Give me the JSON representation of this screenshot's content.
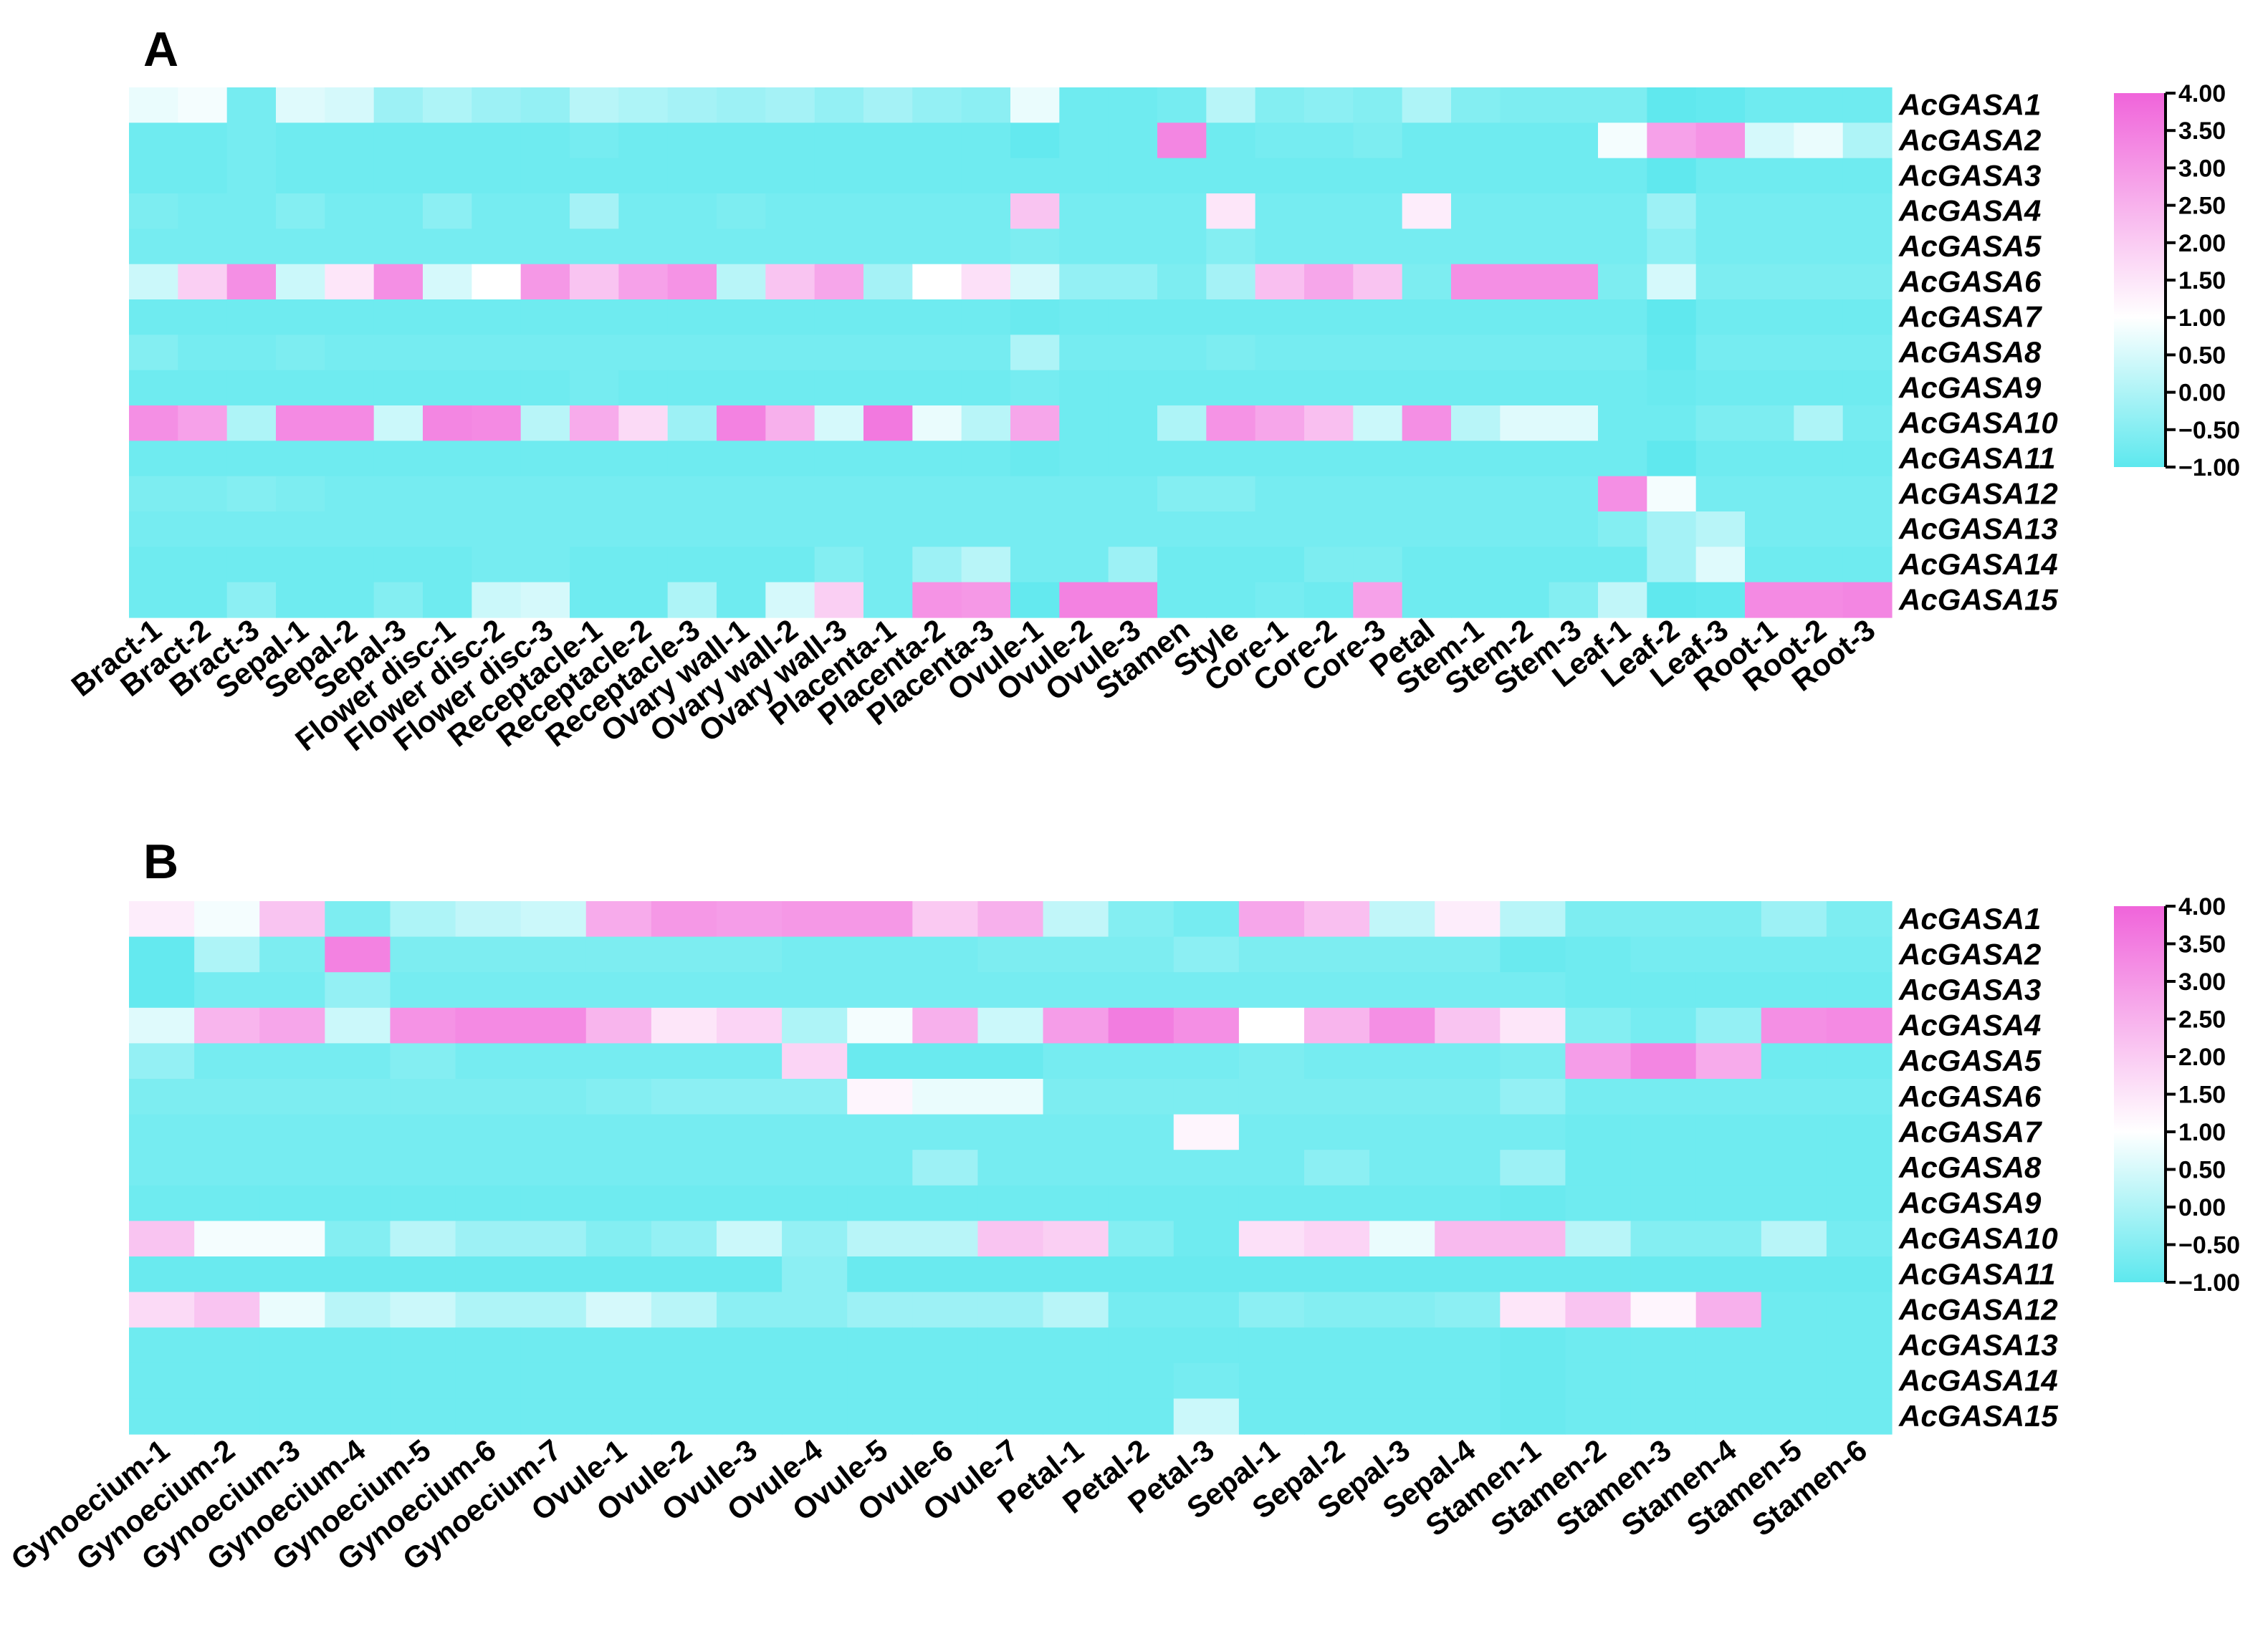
{
  "chart_data": [
    {
      "type": "heatmap",
      "panel": "A",
      "rows": [
        "AcGASA1",
        "AcGASA2",
        "AcGASA3",
        "AcGASA4",
        "AcGASA5",
        "AcGASA6",
        "AcGASA7",
        "AcGASA8",
        "AcGASA9",
        "AcGASA10",
        "AcGASA11",
        "AcGASA12",
        "AcGASA13",
        "AcGASA14",
        "AcGASA15"
      ],
      "columns": [
        "Bract-1",
        "Bract-2",
        "Bract-3",
        "Sepal-1",
        "Sepal-2",
        "Sepal-3",
        "Flower disc-1",
        "Flower disc-2",
        "Flower disc-3",
        "Receptacle-1",
        "Receptacle-2",
        "Receptacle-3",
        "Ovary wall-1",
        "Ovary wall-2",
        "Ovary wall-3",
        "Placenta-1",
        "Placenta-2",
        "Placenta-3",
        "Ovule-1",
        "Ovule-2",
        "Ovule-3",
        "Stamen",
        "Style",
        "Core-1",
        "Core-2",
        "Core-3",
        "Petal",
        "Stem-1",
        "Stem-2",
        "Stem-3",
        "Leaf-1",
        "Leaf-2",
        "Leaf-3",
        "Root-1",
        "Root-2",
        "Root-3"
      ],
      "values": [
        [
          0.8,
          0.9,
          -0.5,
          0.7,
          0.6,
          0.0,
          0.2,
          0.0,
          -0.1,
          0.3,
          0.2,
          0.1,
          0.0,
          0.1,
          -0.1,
          0.1,
          -0.1,
          -0.2,
          0.8,
          -0.6,
          -0.6,
          -0.5,
          0.3,
          -0.3,
          -0.2,
          -0.3,
          0.2,
          -0.3,
          -0.4,
          -0.4,
          -0.4,
          -0.9,
          -0.8,
          -0.6,
          -0.6,
          -0.6
        ],
        [
          -0.6,
          -0.6,
          -0.5,
          -0.6,
          -0.6,
          -0.6,
          -0.6,
          -0.6,
          -0.6,
          -0.5,
          -0.6,
          -0.6,
          -0.6,
          -0.6,
          -0.6,
          -0.6,
          -0.6,
          -0.6,
          -0.8,
          -0.6,
          -0.6,
          3.2,
          -0.6,
          -0.5,
          -0.5,
          -0.4,
          -0.6,
          -0.6,
          -0.6,
          -0.6,
          0.9,
          2.6,
          2.9,
          0.6,
          0.8,
          0.2
        ],
        [
          -0.6,
          -0.6,
          -0.5,
          -0.6,
          -0.6,
          -0.6,
          -0.6,
          -0.6,
          -0.6,
          -0.6,
          -0.6,
          -0.6,
          -0.6,
          -0.6,
          -0.6,
          -0.6,
          -0.6,
          -0.6,
          -0.6,
          -0.6,
          -0.6,
          -0.6,
          -0.6,
          -0.6,
          -0.6,
          -0.6,
          -0.6,
          -0.6,
          -0.6,
          -0.6,
          -0.6,
          -0.9,
          -0.6,
          -0.6,
          -0.6,
          -0.6
        ],
        [
          -0.4,
          -0.5,
          -0.5,
          -0.3,
          -0.5,
          -0.5,
          -0.2,
          -0.5,
          -0.5,
          0.1,
          -0.5,
          -0.5,
          -0.4,
          -0.5,
          -0.5,
          -0.5,
          -0.5,
          -0.5,
          1.9,
          -0.5,
          -0.5,
          -0.5,
          1.3,
          -0.5,
          -0.5,
          -0.5,
          1.2,
          -0.5,
          -0.5,
          -0.5,
          -0.5,
          0.0,
          -0.5,
          -0.5,
          -0.5,
          -0.5
        ],
        [
          -0.5,
          -0.5,
          -0.5,
          -0.5,
          -0.5,
          -0.5,
          -0.5,
          -0.5,
          -0.5,
          -0.5,
          -0.5,
          -0.5,
          -0.5,
          -0.5,
          -0.5,
          -0.5,
          -0.5,
          -0.5,
          -0.4,
          -0.5,
          -0.5,
          -0.5,
          -0.3,
          -0.5,
          -0.5,
          -0.5,
          -0.5,
          -0.5,
          -0.5,
          -0.5,
          -0.5,
          -0.2,
          -0.5,
          -0.5,
          -0.5,
          -0.5
        ],
        [
          0.5,
          1.7,
          3.0,
          0.5,
          1.3,
          3.0,
          0.6,
          1.0,
          2.8,
          1.9,
          2.6,
          2.9,
          0.3,
          1.9,
          2.5,
          0.1,
          1.0,
          1.4,
          0.6,
          -0.1,
          -0.1,
          -0.4,
          0.1,
          2.0,
          2.5,
          1.9,
          -0.4,
          3.0,
          3.0,
          3.0,
          -0.4,
          0.6,
          -0.4,
          -0.4,
          -0.4,
          -0.4
        ],
        [
          -0.6,
          -0.6,
          -0.6,
          -0.6,
          -0.6,
          -0.6,
          -0.6,
          -0.6,
          -0.6,
          -0.6,
          -0.6,
          -0.6,
          -0.6,
          -0.6,
          -0.6,
          -0.6,
          -0.6,
          -0.6,
          -0.7,
          -0.6,
          -0.6,
          -0.6,
          -0.6,
          -0.6,
          -0.6,
          -0.6,
          -0.6,
          -0.6,
          -0.6,
          -0.6,
          -0.6,
          -0.9,
          -0.6,
          -0.6,
          -0.6,
          -0.6
        ],
        [
          -0.3,
          -0.5,
          -0.5,
          -0.4,
          -0.5,
          -0.5,
          -0.5,
          -0.5,
          -0.5,
          -0.5,
          -0.5,
          -0.5,
          -0.5,
          -0.5,
          -0.5,
          -0.5,
          -0.5,
          -0.5,
          0.2,
          -0.5,
          -0.5,
          -0.5,
          -0.4,
          -0.5,
          -0.5,
          -0.5,
          -0.5,
          -0.5,
          -0.5,
          -0.5,
          -0.5,
          -0.8,
          -0.5,
          -0.5,
          -0.5,
          -0.5
        ],
        [
          -0.6,
          -0.6,
          -0.6,
          -0.6,
          -0.6,
          -0.6,
          -0.6,
          -0.6,
          -0.6,
          -0.5,
          -0.6,
          -0.6,
          -0.6,
          -0.6,
          -0.6,
          -0.6,
          -0.6,
          -0.6,
          -0.5,
          -0.6,
          -0.6,
          -0.6,
          -0.6,
          -0.6,
          -0.6,
          -0.6,
          -0.6,
          -0.6,
          -0.6,
          -0.6,
          -0.6,
          -0.7,
          -0.6,
          -0.6,
          -0.6,
          -0.6
        ],
        [
          3.0,
          2.6,
          0.2,
          3.1,
          3.1,
          0.5,
          3.2,
          3.1,
          0.3,
          2.4,
          1.5,
          0.0,
          3.3,
          2.3,
          0.6,
          3.5,
          0.8,
          0.3,
          2.5,
          -0.6,
          -0.6,
          0.2,
          2.9,
          2.5,
          2.0,
          0.5,
          3.0,
          0.3,
          0.7,
          0.7,
          -0.6,
          -0.6,
          -0.4,
          -0.4,
          0.2,
          -0.5
        ],
        [
          -0.6,
          -0.6,
          -0.6,
          -0.6,
          -0.6,
          -0.6,
          -0.6,
          -0.6,
          -0.6,
          -0.6,
          -0.6,
          -0.6,
          -0.6,
          -0.6,
          -0.6,
          -0.6,
          -0.6,
          -0.6,
          -0.7,
          -0.6,
          -0.6,
          -0.6,
          -0.6,
          -0.6,
          -0.6,
          -0.6,
          -0.6,
          -0.6,
          -0.6,
          -0.6,
          -0.6,
          -0.9,
          -0.6,
          -0.6,
          -0.6,
          -0.6
        ],
        [
          -0.4,
          -0.4,
          -0.3,
          -0.4,
          -0.5,
          -0.5,
          -0.5,
          -0.5,
          -0.5,
          -0.5,
          -0.5,
          -0.5,
          -0.5,
          -0.5,
          -0.5,
          -0.5,
          -0.5,
          -0.5,
          -0.5,
          -0.5,
          -0.5,
          -0.3,
          -0.3,
          -0.5,
          -0.5,
          -0.5,
          -0.5,
          -0.5,
          -0.5,
          -0.5,
          3.0,
          0.9,
          -0.5,
          -0.5,
          -0.5,
          -0.5
        ],
        [
          -0.5,
          -0.5,
          -0.5,
          -0.5,
          -0.5,
          -0.5,
          -0.5,
          -0.5,
          -0.5,
          -0.5,
          -0.5,
          -0.5,
          -0.5,
          -0.5,
          -0.5,
          -0.5,
          -0.5,
          -0.5,
          -0.5,
          -0.5,
          -0.5,
          -0.5,
          -0.5,
          -0.5,
          -0.5,
          -0.5,
          -0.5,
          -0.5,
          -0.5,
          -0.5,
          -0.3,
          0.1,
          0.3,
          -0.5,
          -0.5,
          -0.5
        ],
        [
          -0.6,
          -0.6,
          -0.6,
          -0.6,
          -0.6,
          -0.6,
          -0.6,
          -0.5,
          -0.5,
          -0.6,
          -0.6,
          -0.6,
          -0.6,
          -0.6,
          -0.3,
          -0.5,
          0.0,
          0.3,
          -0.5,
          -0.5,
          0.0,
          -0.6,
          -0.6,
          -0.6,
          -0.4,
          -0.4,
          -0.6,
          -0.6,
          -0.6,
          -0.6,
          -0.6,
          0.1,
          0.7,
          -0.6,
          -0.6,
          -0.6
        ],
        [
          -0.6,
          -0.6,
          -0.2,
          -0.6,
          -0.6,
          -0.3,
          -0.6,
          0.5,
          0.6,
          -0.6,
          -0.6,
          0.2,
          -0.6,
          0.6,
          1.7,
          -0.5,
          2.9,
          2.8,
          -0.8,
          3.3,
          3.3,
          -0.6,
          -0.6,
          -0.5,
          -0.6,
          2.6,
          -0.6,
          -0.6,
          -0.6,
          -0.3,
          0.4,
          -0.9,
          -0.8,
          3.1,
          3.1,
          3.2
        ]
      ],
      "colorbar": {
        "min": -1.0,
        "max": 4.0,
        "ticks": [
          "4.00",
          "3.50",
          "3.00",
          "2.50",
          "2.00",
          "1.50",
          "1.00",
          "0.50",
          "0.00",
          "−0.50",
          "−1.00"
        ]
      },
      "colors": {
        "low": "#5de8ee",
        "mid": "#ffffff",
        "high": "#f064da"
      }
    },
    {
      "type": "heatmap",
      "panel": "B",
      "rows": [
        "AcGASA1",
        "AcGASA2",
        "AcGASA3",
        "AcGASA4",
        "AcGASA5",
        "AcGASA6",
        "AcGASA7",
        "AcGASA8",
        "AcGASA9",
        "AcGASA10",
        "AcGASA11",
        "AcGASA12",
        "AcGASA13",
        "AcGASA14",
        "AcGASA15"
      ],
      "columns": [
        "Gynoecium-1",
        "Gynoecium-2",
        "Gynoecium-3",
        "Gynoecium-4",
        "Gynoecium-5",
        "Gynoecium-6",
        "Gynoecium-7",
        "Ovule-1",
        "Ovule-2",
        "Ovule-3",
        "Ovule-4",
        "Ovule-5",
        "Ovule-6",
        "Ovule-7",
        "Petal-1",
        "Petal-2",
        "Petal-3",
        "Sepal-1",
        "Sepal-2",
        "Sepal-3",
        "Sepal-4",
        "Stamen-1",
        "Stamen-2",
        "Stamen-3",
        "Stamen-4",
        "Stamen-5",
        "Stamen-6"
      ],
      "values": [
        [
          1.2,
          0.9,
          1.9,
          -0.4,
          0.2,
          0.4,
          0.5,
          2.4,
          2.8,
          2.7,
          2.8,
          2.8,
          1.8,
          2.3,
          0.4,
          -0.3,
          -0.5,
          2.5,
          2.0,
          0.4,
          1.2,
          0.3,
          -0.4,
          -0.4,
          -0.4,
          0.0,
          -0.4
        ],
        [
          -0.8,
          0.2,
          -0.4,
          3.3,
          -0.4,
          -0.4,
          -0.4,
          -0.4,
          -0.4,
          -0.4,
          -0.5,
          -0.5,
          -0.5,
          -0.4,
          -0.4,
          -0.4,
          -0.2,
          -0.4,
          -0.4,
          -0.4,
          -0.4,
          -0.7,
          -0.6,
          -0.5,
          -0.5,
          -0.5,
          -0.5
        ],
        [
          -0.8,
          -0.5,
          -0.5,
          -0.1,
          -0.5,
          -0.5,
          -0.5,
          -0.5,
          -0.5,
          -0.5,
          -0.5,
          -0.5,
          -0.5,
          -0.5,
          -0.5,
          -0.5,
          -0.5,
          -0.5,
          -0.5,
          -0.5,
          -0.5,
          -0.5,
          -0.6,
          -0.6,
          -0.6,
          -0.6,
          -0.6
        ],
        [
          0.7,
          2.2,
          2.5,
          0.5,
          2.9,
          3.1,
          3.1,
          2.2,
          1.3,
          1.6,
          0.2,
          0.9,
          2.3,
          0.5,
          2.7,
          3.4,
          3.0,
          1.0,
          2.2,
          3.0,
          1.9,
          1.3,
          -0.3,
          -0.5,
          -0.1,
          3.0,
          3.1
        ],
        [
          -0.1,
          -0.5,
          -0.5,
          -0.5,
          -0.3,
          -0.5,
          -0.5,
          -0.5,
          -0.5,
          -0.5,
          1.6,
          -0.7,
          -0.7,
          -0.7,
          -0.5,
          -0.5,
          -0.5,
          -0.4,
          -0.5,
          -0.5,
          -0.5,
          -0.4,
          2.7,
          3.2,
          2.4,
          -0.6,
          -0.6
        ],
        [
          -0.4,
          -0.4,
          -0.4,
          -0.4,
          -0.4,
          -0.4,
          -0.4,
          -0.3,
          -0.2,
          -0.2,
          -0.2,
          1.1,
          0.8,
          0.8,
          -0.4,
          -0.4,
          -0.4,
          -0.4,
          -0.4,
          -0.4,
          -0.4,
          -0.1,
          -0.5,
          -0.5,
          -0.5,
          -0.5,
          -0.5
        ],
        [
          -0.5,
          -0.5,
          -0.5,
          -0.5,
          -0.5,
          -0.5,
          -0.5,
          -0.5,
          -0.5,
          -0.5,
          -0.5,
          -0.5,
          -0.5,
          -0.5,
          -0.5,
          -0.5,
          1.1,
          -0.5,
          -0.5,
          -0.5,
          -0.5,
          -0.5,
          -0.6,
          -0.6,
          -0.6,
          -0.6,
          -0.6
        ],
        [
          -0.5,
          -0.5,
          -0.5,
          -0.5,
          -0.5,
          -0.5,
          -0.5,
          -0.5,
          -0.5,
          -0.5,
          -0.5,
          -0.5,
          0.0,
          -0.5,
          -0.5,
          -0.5,
          -0.5,
          -0.5,
          -0.2,
          -0.5,
          -0.5,
          0.0,
          -0.6,
          -0.6,
          -0.6,
          -0.6,
          -0.6
        ],
        [
          -0.6,
          -0.6,
          -0.6,
          -0.6,
          -0.6,
          -0.6,
          -0.6,
          -0.6,
          -0.6,
          -0.6,
          -0.6,
          -0.6,
          -0.6,
          -0.6,
          -0.6,
          -0.6,
          -0.6,
          -0.6,
          -0.6,
          -0.6,
          -0.6,
          -0.7,
          -0.6,
          -0.6,
          -0.6,
          -0.6,
          -0.6
        ],
        [
          1.9,
          0.9,
          0.9,
          -0.3,
          0.3,
          0.0,
          0.0,
          -0.3,
          -0.1,
          0.5,
          -0.1,
          0.3,
          0.3,
          1.9,
          1.7,
          -0.3,
          -0.6,
          1.4,
          1.6,
          0.8,
          2.1,
          2.1,
          0.3,
          -0.3,
          -0.3,
          0.3,
          -0.5
        ],
        [
          -0.7,
          -0.7,
          -0.7,
          -0.7,
          -0.7,
          -0.7,
          -0.7,
          -0.7,
          -0.7,
          -0.7,
          -0.2,
          -0.7,
          -0.7,
          -0.7,
          -0.7,
          -0.7,
          -0.7,
          -0.7,
          -0.7,
          -0.7,
          -0.7,
          -0.7,
          -0.7,
          -0.7,
          -0.7,
          -0.7,
          -0.7
        ],
        [
          1.5,
          1.9,
          0.8,
          0.3,
          0.5,
          0.2,
          0.2,
          0.6,
          0.3,
          -0.2,
          -0.2,
          0.0,
          0.0,
          0.0,
          0.3,
          -0.5,
          -0.5,
          -0.2,
          -0.3,
          -0.3,
          -0.2,
          1.3,
          1.9,
          1.1,
          2.3,
          -0.6,
          -0.6
        ],
        [
          -0.6,
          -0.6,
          -0.6,
          -0.6,
          -0.6,
          -0.6,
          -0.6,
          -0.6,
          -0.6,
          -0.6,
          -0.6,
          -0.6,
          -0.6,
          -0.6,
          -0.6,
          -0.6,
          -0.6,
          -0.6,
          -0.6,
          -0.6,
          -0.6,
          -0.7,
          -0.6,
          -0.6,
          -0.6,
          -0.6,
          -0.6
        ],
        [
          -0.6,
          -0.6,
          -0.6,
          -0.6,
          -0.6,
          -0.6,
          -0.6,
          -0.6,
          -0.6,
          -0.6,
          -0.6,
          -0.6,
          -0.6,
          -0.6,
          -0.6,
          -0.6,
          -0.5,
          -0.6,
          -0.6,
          -0.6,
          -0.6,
          -0.7,
          -0.6,
          -0.6,
          -0.6,
          -0.6,
          -0.6
        ],
        [
          -0.6,
          -0.6,
          -0.6,
          -0.6,
          -0.6,
          -0.6,
          -0.6,
          -0.6,
          -0.6,
          -0.6,
          -0.6,
          -0.6,
          -0.6,
          -0.6,
          -0.6,
          -0.6,
          0.5,
          -0.6,
          -0.6,
          -0.6,
          -0.6,
          -0.7,
          -0.6,
          -0.6,
          -0.6,
          -0.6,
          -0.6
        ]
      ],
      "colorbar": {
        "min": -1.0,
        "max": 4.0,
        "ticks": [
          "4.00",
          "3.50",
          "3.00",
          "2.50",
          "2.00",
          "1.50",
          "1.00",
          "0.50",
          "0.00",
          "−0.50",
          "−1.00"
        ]
      },
      "colors": {
        "low": "#5de8ee",
        "mid": "#ffffff",
        "high": "#f064da"
      }
    }
  ]
}
